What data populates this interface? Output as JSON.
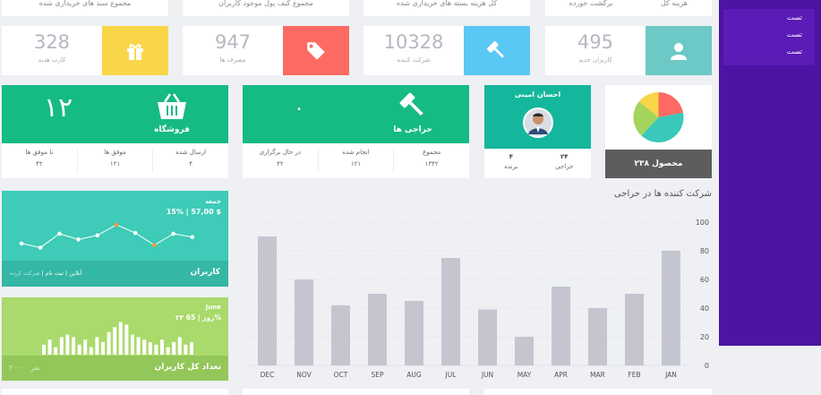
{
  "top_labels": [
    "مجموع سبد های خریداری شده",
    "مجموع کیف پول موجود کاربران",
    "کل هزینه بسته های خریداری شده",
    "برگشت خورده",
    "هزینه کل"
  ],
  "stats": [
    {
      "value": "328",
      "label": "کارت هدیه",
      "color": "#f9d548",
      "icon": "gift-icon"
    },
    {
      "value": "947",
      "label": "مصرف ها",
      "color": "#fc6a63",
      "icon": "tags-icon"
    },
    {
      "value": "10328",
      "label": "شرکت کننده",
      "color": "#5ac8f4",
      "icon": "gavel-icon"
    },
    {
      "value": "495",
      "label": "کاربران جدید",
      "color": "#6cc9c5",
      "icon": "user-icon"
    }
  ],
  "shop": {
    "count": "۱۲",
    "title": "فروشگاه",
    "cols": [
      {
        "label": "نا موفق ها",
        "value": "۴۲"
      },
      {
        "label": "موفق ها",
        "value": "۱۲۱"
      },
      {
        "label": "ارسال شده",
        "value": "۴"
      }
    ]
  },
  "auction": {
    "count": "۰",
    "title": "حراجی ها",
    "cols": [
      {
        "label": "در حال برگزاری",
        "value": "۴۲"
      },
      {
        "label": "انجام شده",
        "value": "۱۲۱"
      },
      {
        "label": "مجموع",
        "value": "۱۳۴۲"
      }
    ]
  },
  "profile": {
    "name": "احسان امینی",
    "cols": [
      {
        "label": "برنده",
        "value": "۴"
      },
      {
        "label": "حراجی",
        "value": "۲۴"
      }
    ]
  },
  "products": {
    "label": "۲۳۸ محصول",
    "slices": [
      {
        "value": 22,
        "color": "#fc6a63"
      },
      {
        "value": 40,
        "color": "#39c8b9"
      },
      {
        "value": 24,
        "color": "#a4d45c"
      },
      {
        "value": 14,
        "color": "#f9d548"
      }
    ]
  },
  "users_card": {
    "day": "جمعه",
    "stat": "15% | 57,00 $",
    "title": "کاربران",
    "legend_a": "آنلاین",
    "legend_b": "ثبت نام",
    "legend_c": "شرکت کرده",
    "sep": "|",
    "line": [
      40,
      35,
      52,
      45,
      50,
      63,
      53,
      38,
      52,
      48
    ],
    "highlight": [
      5,
      7
    ]
  },
  "total_users": {
    "month": "June",
    "days": "۲۳ روز | 65%",
    "title": "تعداد کل کاربران",
    "subtitle": "۳۰۰۰۰ نفر",
    "bars": [
      4,
      6,
      3,
      7,
      8,
      7,
      4,
      6,
      3,
      7,
      5,
      9,
      11,
      13,
      12,
      8,
      7,
      6,
      5,
      4,
      6,
      3,
      5,
      7,
      4,
      5
    ]
  },
  "chart_data": {
    "type": "bar",
    "title": "شرکت کننده ها در حراجی",
    "categories": [
      "DEC",
      "NOV",
      "OCT",
      "SEP",
      "AUG",
      "JUL",
      "JUN",
      "MAY",
      "APR",
      "MAR",
      "FEB",
      "JAN"
    ],
    "values": [
      90,
      60,
      42,
      50,
      45,
      75,
      39,
      20,
      55,
      40,
      50,
      80
    ],
    "ylim": [
      0,
      100
    ],
    "yticks": [
      0,
      20,
      40,
      60,
      80,
      100
    ],
    "grid": true,
    "color": "#c5c5d0"
  },
  "sidebar": {
    "items": [
      "تست",
      "تست",
      "تست"
    ]
  }
}
